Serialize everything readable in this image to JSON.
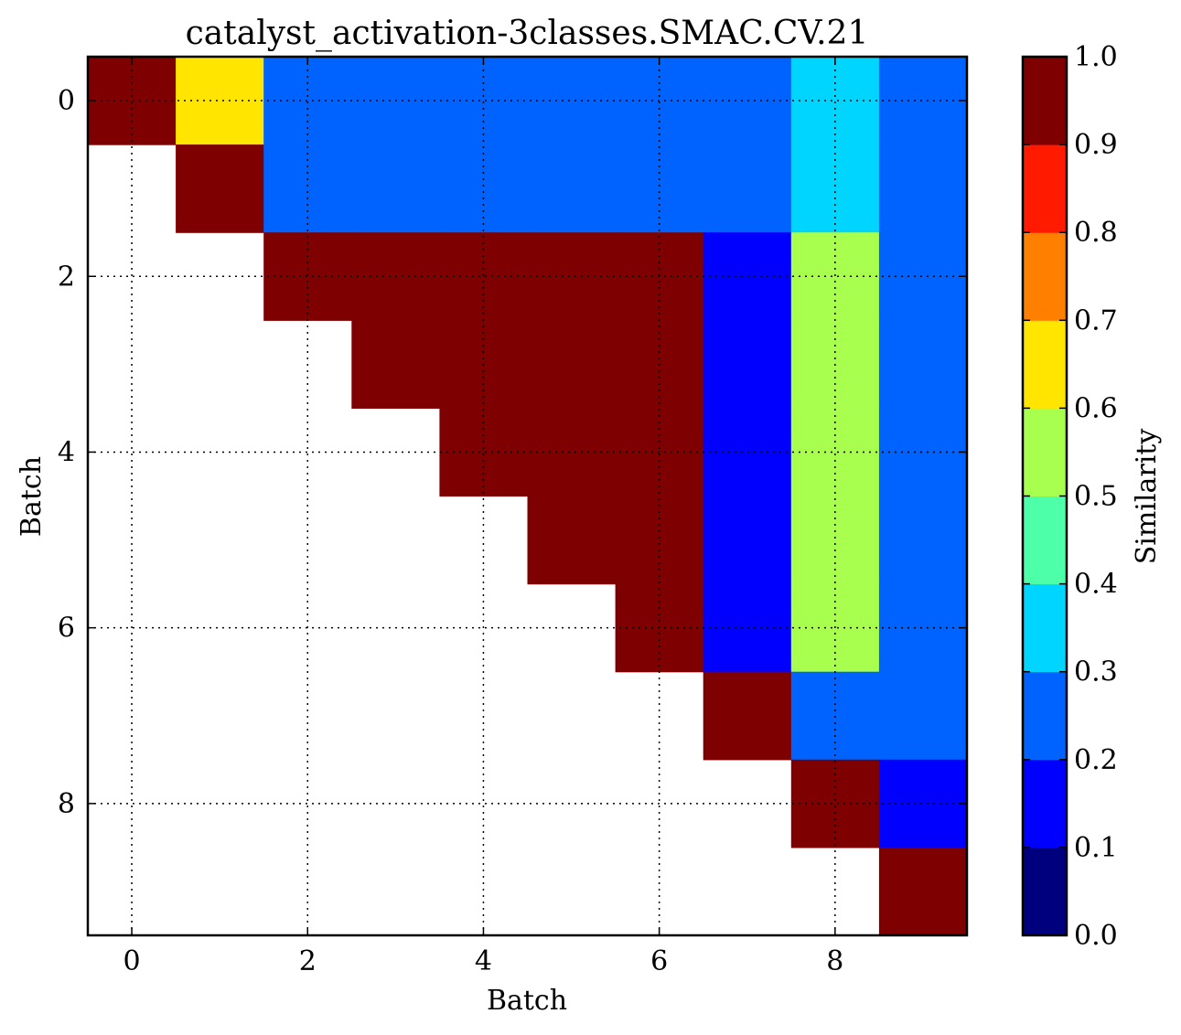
{
  "chart_data": {
    "type": "heatmap",
    "title": "catalyst_activation-3classes.SMAC.CV.21",
    "xlabel": "Batch",
    "ylabel": "Batch",
    "colorbar_label": "Similarity",
    "x_ticks": [
      "0",
      "2",
      "4",
      "6",
      "8"
    ],
    "y_ticks": [
      "0",
      "2",
      "4",
      "6",
      "8"
    ],
    "colorbar_ticks": [
      "0.0",
      "0.1",
      "0.2",
      "0.3",
      "0.4",
      "0.5",
      "0.6",
      "0.7",
      "0.8",
      "0.9",
      "1.0"
    ],
    "vmin": 0.0,
    "vmax": 1.0,
    "grid": true,
    "colormap": "jet (10 discrete levels)",
    "colors": [
      "#00007f",
      "#0000ff",
      "#0063ff",
      "#00d5ff",
      "#4dffa9",
      "#a9ff4d",
      "#ffe500",
      "#ff7f00",
      "#ff1a00",
      "#7f0000"
    ],
    "matrix": [
      [
        1.0,
        0.65,
        0.25,
        0.25,
        0.25,
        0.25,
        0.25,
        0.25,
        0.35,
        0.25
      ],
      [
        null,
        1.0,
        0.25,
        0.25,
        0.25,
        0.25,
        0.25,
        0.25,
        0.35,
        0.25
      ],
      [
        null,
        null,
        1.0,
        1.0,
        1.0,
        1.0,
        1.0,
        0.15,
        0.55,
        0.25
      ],
      [
        null,
        null,
        null,
        1.0,
        1.0,
        1.0,
        1.0,
        0.15,
        0.55,
        0.25
      ],
      [
        null,
        null,
        null,
        null,
        1.0,
        1.0,
        1.0,
        0.15,
        0.55,
        0.25
      ],
      [
        null,
        null,
        null,
        null,
        null,
        1.0,
        1.0,
        0.15,
        0.55,
        0.25
      ],
      [
        null,
        null,
        null,
        null,
        null,
        null,
        1.0,
        0.15,
        0.55,
        0.25
      ],
      [
        null,
        null,
        null,
        null,
        null,
        null,
        null,
        1.0,
        0.25,
        0.25
      ],
      [
        null,
        null,
        null,
        null,
        null,
        null,
        null,
        null,
        1.0,
        0.15
      ],
      [
        null,
        null,
        null,
        null,
        null,
        null,
        null,
        null,
        null,
        1.0
      ]
    ]
  }
}
